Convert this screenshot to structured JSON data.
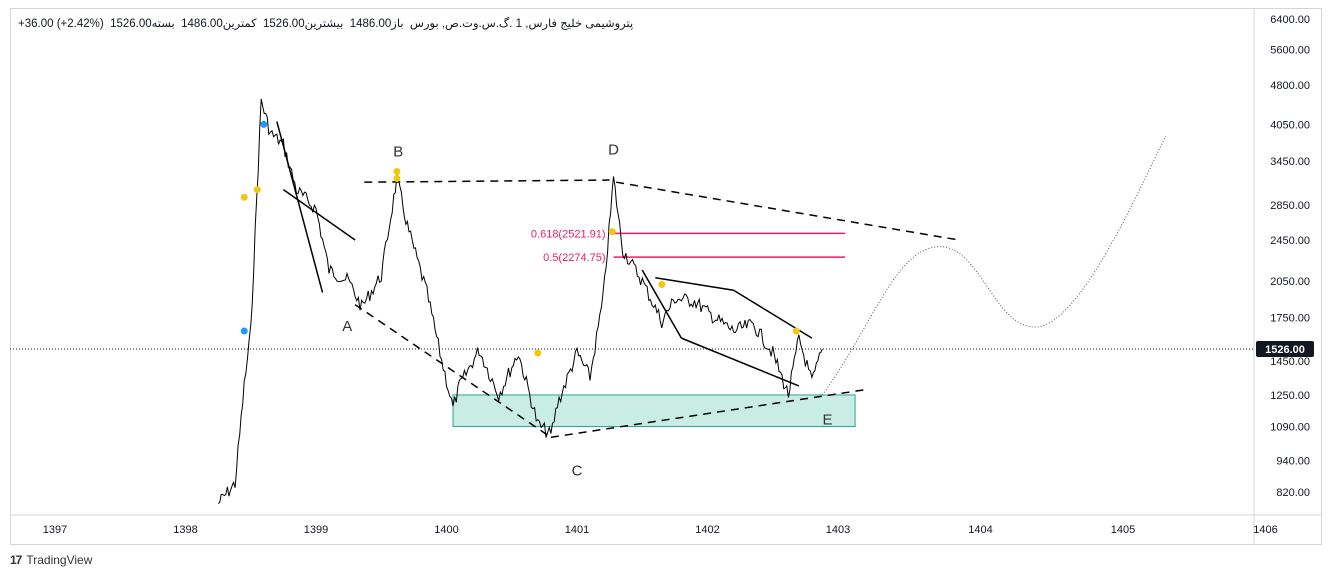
{
  "legend": {
    "symbol": "پتروشیمی خلیج فارس, 1",
    "exchange": ".گ.س.وت.ص, بورس",
    "open_label": "باز",
    "open": "1486.00",
    "high_label": "بیشترین",
    "high": "1526.00",
    "low_label": "کمترین",
    "low": "1486.00",
    "close_label": "بسته",
    "close": "1526.00",
    "change": "+36.00 (+2.42%)"
  },
  "footer": {
    "brand": "TradingView",
    "logo_glyph": "17"
  },
  "colors": {
    "fib": "#e91e63",
    "zone_fill": "#b2e5d8",
    "zone_border": "#26a69a",
    "marker_yellow": "#f2c80f",
    "marker_blue": "#2196f3",
    "price_tag_bg": "#131722"
  },
  "chart_data": {
    "type": "line",
    "title": "",
    "xlabel": "",
    "ylabel": "",
    "y_scale": "log",
    "y_ticks": [
      "6400.00",
      "5600.00",
      "4800.00",
      "4050.00",
      "3450.00",
      "2850.00",
      "2450.00",
      "2050.00",
      "1750.00",
      "1450.00",
      "1250.00",
      "1090.00",
      "940.00",
      "820.00"
    ],
    "x_ticks": [
      "1397",
      "1398",
      "1399",
      "1400",
      "1401",
      "1402",
      "1403",
      "1404",
      "1405",
      "1406"
    ],
    "last_price": "1526.00",
    "series": [
      {
        "x": [
          1398.25,
          1398.38,
          1398.45,
          1398.5,
          1398.58,
          1398.65,
          1398.75,
          1398.85,
          1399.0,
          1399.1,
          1399.25,
          1399.35,
          1399.5,
          1399.62,
          1399.7,
          1399.85,
          1399.95,
          1400.05,
          1400.1,
          1400.25,
          1400.4,
          1400.55,
          1400.7,
          1400.8,
          1400.85,
          1401.0,
          1401.1,
          1401.2,
          1401.28,
          1401.35,
          1401.5,
          1401.65,
          1401.75,
          1401.9,
          1402.05,
          1402.2,
          1402.35,
          1402.5,
          1402.62,
          1402.7,
          1402.8,
          1402.88
        ],
        "values": [
          780,
          850,
          1300,
          1650,
          4500,
          3900,
          3700,
          3050,
          2800,
          2150,
          2050,
          1830,
          2100,
          3200,
          2600,
          1950,
          1500,
          1180,
          1300,
          1520,
          1250,
          1500,
          1100,
          1050,
          1200,
          1500,
          1350,
          1900,
          3200,
          2350,
          2050,
          1720,
          1900,
          1880,
          1750,
          1650,
          1700,
          1500,
          1250,
          1600,
          1320,
          1526
        ]
      }
    ],
    "annotations": {
      "wave_labels": [
        "A",
        "B",
        "C",
        "D",
        "E"
      ],
      "fib_levels": [
        {
          "label": "0.618(2521.91)",
          "value": 2521.91
        },
        {
          "label": "0.5(2274.75)",
          "value": 2274.75
        }
      ],
      "zone": {
        "low": 1090,
        "high": 1250
      },
      "projection": "dotted path rising to ~2400, dipping to ~1700, then rising beyond 3800"
    }
  }
}
